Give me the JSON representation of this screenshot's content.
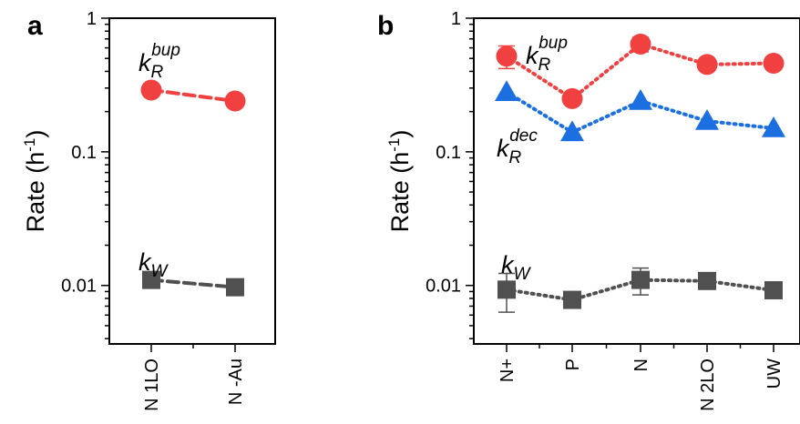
{
  "chart_data": [
    {
      "panel": "a",
      "type": "line",
      "ylabel": "Rate (h-1)",
      "ylabel_parts": {
        "main": "Rate (h",
        "sup": "-1",
        "close": ")"
      },
      "yscale": "log",
      "ylim": [
        0.00365,
        1
      ],
      "yticks": [
        {
          "value": 1,
          "label": "1"
        },
        {
          "value": 0.1,
          "label": "0.1"
        },
        {
          "value": 0.01,
          "label": "0.01"
        }
      ],
      "categories": [
        "N 1LO",
        "N -Au"
      ],
      "series": [
        {
          "color": "#f04040",
          "marker": "circle",
          "line": "dashed",
          "values": [
            0.29,
            0.24
          ]
        },
        {
          "color": "#505050",
          "marker": "square",
          "line": "dashed",
          "values": [
            0.011,
            0.0097
          ]
        }
      ],
      "annotations": [
        {
          "main": "k",
          "sub": "R",
          "sup": "bup",
          "near_series": 0
        },
        {
          "main": "k",
          "sub": "W",
          "sup": "",
          "near_series": 1
        }
      ]
    },
    {
      "panel": "b",
      "type": "line",
      "ylabel": "Rate (h-1)",
      "ylabel_parts": {
        "main": "Rate (h",
        "sup": "-1",
        "close": ")"
      },
      "yscale": "log",
      "ylim": [
        0.00365,
        1
      ],
      "yticks": [
        {
          "value": 1,
          "label": "1"
        },
        {
          "value": 0.1,
          "label": "0.1"
        },
        {
          "value": 0.01,
          "label": "0.01"
        }
      ],
      "categories": [
        "N+",
        "P",
        "N",
        "N 2LO",
        "UW"
      ],
      "series": [
        {
          "color": "#f04040",
          "marker": "circle",
          "line": "dotted",
          "values": [
            0.52,
            0.25,
            0.64,
            0.45,
            0.46
          ],
          "err": [
            0.1,
            0,
            0.08,
            0,
            0
          ]
        },
        {
          "color": "#1c6fe0",
          "marker": "triangle",
          "line": "dotted",
          "values": [
            0.28,
            0.14,
            0.24,
            0.17,
            0.15
          ]
        },
        {
          "color": "#505050",
          "marker": "square",
          "line": "dotted",
          "values": [
            0.0093,
            0.0078,
            0.011,
            0.0108,
            0.0092
          ],
          "err": [
            0.003,
            0,
            0.0025,
            0.0007,
            0
          ]
        }
      ],
      "annotations": [
        {
          "main": "k",
          "sub": "R",
          "sup": "bup",
          "near_series": 0
        },
        {
          "main": "k",
          "sub": "R",
          "sup": "dec",
          "near_series": 1
        },
        {
          "main": "k",
          "sub": "W",
          "sup": "",
          "near_series": 2
        }
      ]
    }
  ]
}
